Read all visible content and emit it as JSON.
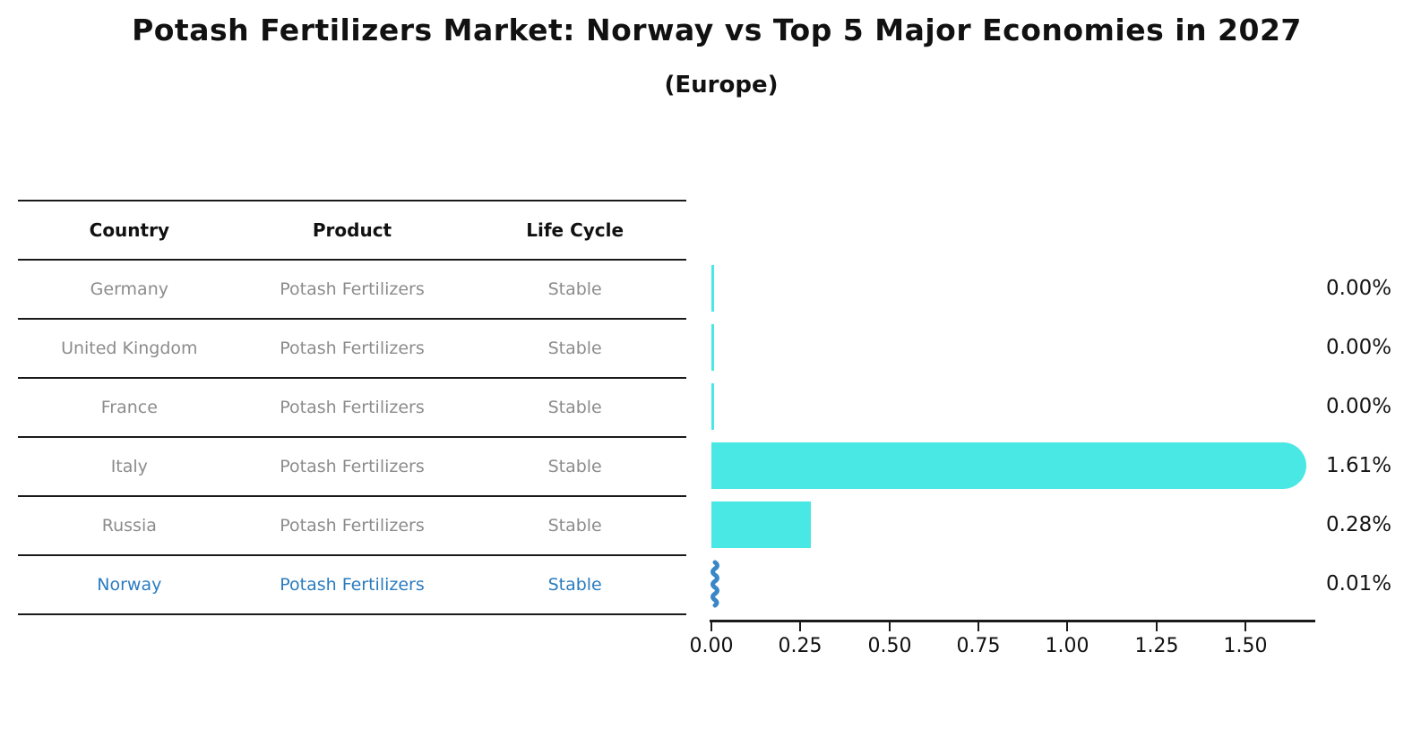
{
  "title": "Potash Fertilizers Market: Norway vs Top 5 Major Economies in 2027",
  "subtitle": "(Europe)",
  "table": {
    "headers": [
      "Country",
      "Product",
      "Life Cycle"
    ],
    "rows": [
      {
        "country": "Germany",
        "product": "Potash Fertilizers",
        "life_cycle": "Stable"
      },
      {
        "country": "United Kingdom",
        "product": "Potash Fertilizers",
        "life_cycle": "Stable"
      },
      {
        "country": "France",
        "product": "Potash Fertilizers",
        "life_cycle": "Stable"
      },
      {
        "country": "Italy",
        "product": "Potash Fertilizers",
        "life_cycle": "Stable"
      },
      {
        "country": "Russia",
        "product": "Potash Fertilizers",
        "life_cycle": "Stable"
      },
      {
        "country": "Norway",
        "product": "Potash Fertilizers",
        "life_cycle": "Stable"
      }
    ]
  },
  "chart_data": {
    "type": "bar",
    "orientation": "horizontal",
    "title": "Potash Fertilizers Market: Norway vs Top 5 Major Economies in 2027",
    "subtitle": "(Europe)",
    "categories": [
      "Germany",
      "United Kingdom",
      "France",
      "Italy",
      "Russia",
      "Norway"
    ],
    "values": [
      0.0,
      0.0,
      0.0,
      1.61,
      0.28,
      0.01
    ],
    "value_labels": [
      "0.00%",
      "0.00%",
      "0.00%",
      "1.61%",
      "0.28%",
      "0.01%"
    ],
    "unit": "%",
    "x_ticks": [
      "0.00",
      "0.25",
      "0.50",
      "0.75",
      "1.00",
      "1.25",
      "1.50"
    ],
    "xlim": [
      0,
      1.69
    ],
    "grid": false,
    "legend": "none",
    "bar_color": "#4AE8E4",
    "highlight_color": "#3A87C8",
    "highlight_text_color": "#2B7CBF",
    "highlight_index": 5,
    "highlight_category": "Norway"
  }
}
